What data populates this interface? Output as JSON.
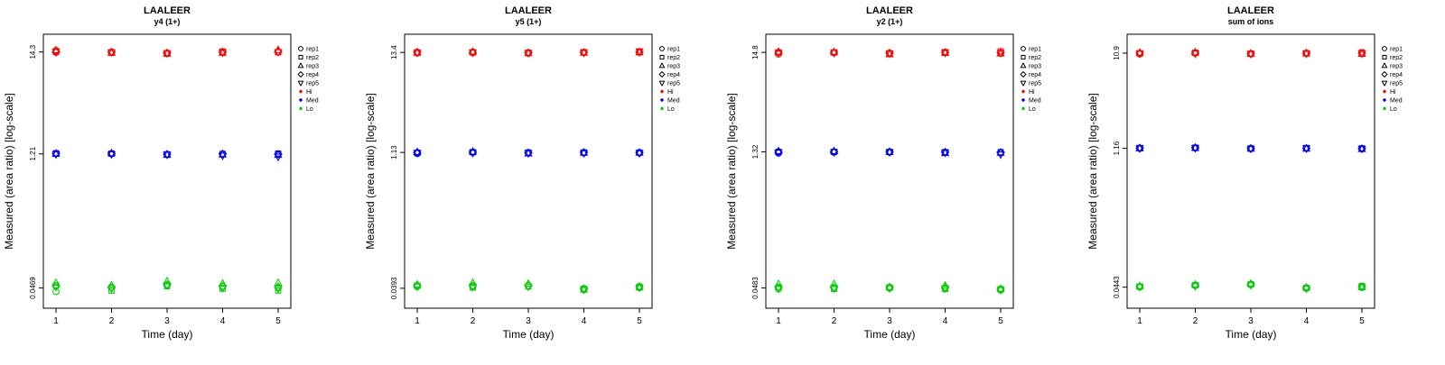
{
  "chart_data": {
    "type": "scatter",
    "shared": {
      "title": "LAALEER",
      "xlabel": "Time (day)",
      "ylabel": "Measured (area ratio) [log-scale]",
      "x": [
        1,
        2,
        3,
        4,
        5
      ],
      "log_scale_y": true,
      "grid": false,
      "legend_position": "right-outside",
      "reps": [
        {
          "label": "rep1",
          "symbol": "circle"
        },
        {
          "label": "rep2",
          "symbol": "square"
        },
        {
          "label": "rep3",
          "symbol": "triangle-up"
        },
        {
          "label": "rep4",
          "symbol": "diamond"
        },
        {
          "label": "rep5",
          "symbol": "triangle-down"
        }
      ],
      "levels": [
        {
          "label": "Hi",
          "color": "#FF0000"
        },
        {
          "label": "Med",
          "color": "#0000FF"
        },
        {
          "label": "Lo",
          "color": "#00CD00"
        }
      ]
    },
    "panels": [
      {
        "subtitle": "y4 (1+)",
        "yticks": [
          "14.3",
          "1.21",
          "0.0469"
        ],
        "ylim": [
          0.0287,
          22
        ],
        "series": {
          "Hi": [
            [
              14.8,
              14.3,
              14.9,
              14.2,
              14.4
            ],
            [
              14.1,
              14.2,
              14.0,
              14.3,
              14.2
            ],
            [
              13.8,
              13.9,
              13.7,
              14.0,
              13.9
            ],
            [
              14.2,
              14.5,
              14.0,
              14.3,
              14.1
            ],
            [
              14.3,
              14.2,
              15.0,
              14.4,
              14.3
            ]
          ],
          "Med": [
            [
              1.22,
              1.23,
              1.21,
              1.22,
              1.2
            ],
            [
              1.21,
              1.22,
              1.23,
              1.21,
              1.2
            ],
            [
              1.19,
              1.2,
              1.18,
              1.2,
              1.19
            ],
            [
              1.2,
              1.21,
              1.19,
              1.21,
              1.16
            ],
            [
              1.21,
              1.22,
              1.18,
              1.2,
              1.13
            ]
          ],
          "Lo": [
            [
              0.043,
              0.05,
              0.053,
              0.049,
              0.048
            ],
            [
              0.048,
              0.044,
              0.05,
              0.047,
              0.046
            ],
            [
              0.05,
              0.049,
              0.055,
              0.051,
              0.05
            ],
            [
              0.048,
              0.046,
              0.052,
              0.049,
              0.047
            ],
            [
              0.047,
              0.044,
              0.053,
              0.048,
              0.046
            ]
          ]
        }
      },
      {
        "subtitle": "y5 (1+)",
        "yticks": [
          "13.4",
          "1.13",
          "0.0393"
        ],
        "ylim": [
          0.024,
          21
        ],
        "series": {
          "Hi": [
            [
              13.2,
              13.4,
              13.3,
              13.5,
              13.3
            ],
            [
              13.5,
              13.4,
              13.6,
              13.3,
              13.4
            ],
            [
              13.2,
              13.3,
              13.1,
              13.3,
              13.2
            ],
            [
              13.4,
              13.5,
              13.3,
              13.4,
              13.3
            ],
            [
              13.5,
              13.6,
              13.4,
              13.5,
              13.8
            ]
          ],
          "Med": [
            [
              1.1,
              1.12,
              1.14,
              1.13,
              1.12
            ],
            [
              1.13,
              1.14,
              1.15,
              1.13,
              1.12
            ],
            [
              1.12,
              1.13,
              1.1,
              1.12,
              1.11
            ],
            [
              1.12,
              1.13,
              1.12,
              1.13,
              1.11
            ],
            [
              1.12,
              1.13,
              1.12,
              1.12,
              1.11
            ]
          ],
          "Lo": [
            [
              0.041,
              0.042,
              0.043,
              0.042,
              0.041
            ],
            [
              0.041,
              0.04,
              0.045,
              0.042,
              0.041
            ],
            [
              0.042,
              0.041,
              0.044,
              0.042,
              0.041
            ],
            [
              0.038,
              0.039,
              0.038,
              0.039,
              0.038
            ],
            [
              0.04,
              0.041,
              0.04,
              0.041,
              0.04
            ]
          ]
        }
      },
      {
        "subtitle": "y2 (1+)",
        "yticks": [
          "14.8",
          "1.32",
          "0.0483"
        ],
        "ylim": [
          0.0295,
          23
        ],
        "series": {
          "Hi": [
            [
              14.2,
              14.8,
              15.0,
              14.7,
              14.6
            ],
            [
              14.7,
              14.8,
              14.9,
              14.7,
              14.6
            ],
            [
              14.3,
              14.5,
              14.1,
              14.6,
              14.4
            ],
            [
              14.7,
              14.9,
              14.6,
              14.8,
              14.7
            ],
            [
              14.5,
              15.2,
              14.4,
              14.7,
              14.6
            ]
          ],
          "Med": [
            [
              1.28,
              1.32,
              1.34,
              1.31,
              1.3
            ],
            [
              1.31,
              1.32,
              1.34,
              1.32,
              1.31
            ],
            [
              1.31,
              1.32,
              1.31,
              1.32,
              1.31
            ],
            [
              1.29,
              1.31,
              1.28,
              1.31,
              1.3
            ],
            [
              1.3,
              1.31,
              1.29,
              1.3,
              1.24
            ]
          ],
          "Lo": [
            [
              0.047,
              0.049,
              0.053,
              0.049,
              0.048
            ],
            [
              0.048,
              0.047,
              0.053,
              0.049,
              0.048
            ],
            [
              0.048,
              0.049,
              0.049,
              0.049,
              0.048
            ],
            [
              0.048,
              0.047,
              0.051,
              0.049,
              0.048
            ],
            [
              0.046,
              0.047,
              0.047,
              0.047,
              0.046
            ]
          ]
        }
      },
      {
        "subtitle": "sum of ions",
        "yticks": [
          "10.9",
          "1.16",
          "0.0443"
        ],
        "ylim": [
          0.027,
          17
        ],
        "series": {
          "Hi": [
            [
              10.7,
              10.9,
              11.0,
              10.9,
              10.8
            ],
            [
              10.9,
              11.0,
              11.1,
              10.9,
              10.8
            ],
            [
              10.7,
              10.8,
              10.7,
              10.8,
              10.7
            ],
            [
              10.8,
              10.9,
              10.8,
              10.9,
              10.8
            ],
            [
              10.8,
              11.1,
              10.7,
              10.9,
              10.8
            ]
          ],
          "Med": [
            [
              1.16,
              1.17,
              1.16,
              1.17,
              1.16
            ],
            [
              1.17,
              1.18,
              1.17,
              1.18,
              1.17
            ],
            [
              1.15,
              1.16,
              1.15,
              1.16,
              1.15
            ],
            [
              1.16,
              1.17,
              1.15,
              1.16,
              1.16
            ],
            [
              1.15,
              1.16,
              1.14,
              1.15,
              1.15
            ]
          ],
          "Lo": [
            [
              0.0445,
              0.045,
              0.0455,
              0.045,
              0.0445
            ],
            [
              0.046,
              0.0465,
              0.047,
              0.046,
              0.0455
            ],
            [
              0.047,
              0.0475,
              0.048,
              0.047,
              0.0465
            ],
            [
              0.043,
              0.0435,
              0.044,
              0.0435,
              0.043
            ],
            [
              0.044,
              0.0455,
              0.044,
              0.045,
              0.0445
            ]
          ]
        }
      }
    ]
  }
}
